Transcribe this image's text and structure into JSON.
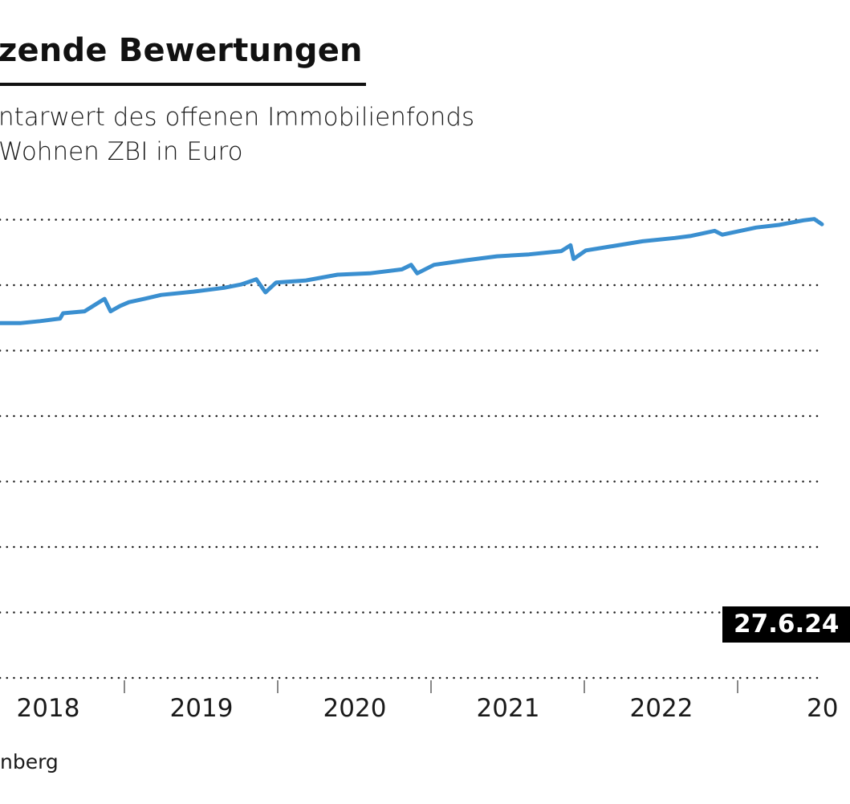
{
  "header": {
    "title": "zende Bewertungen",
    "subtitle_line1": "ntarwert des offenen Immobilienfonds",
    "subtitle_line2": "Wohnen ZBI in Euro"
  },
  "source": "nberg",
  "colors": {
    "line": "#3a8fd0",
    "grid": "#222222",
    "label_bg": "#000000"
  },
  "chart_data": {
    "type": "line",
    "title": "zende Bewertungen",
    "xlabel": "",
    "ylabel": "",
    "x_tick_labels": [
      "2018",
      "2019",
      "2020",
      "2021",
      "2022",
      "20"
    ],
    "grid": true,
    "grid_style": "dotted horizontal",
    "annotation": "27.6.24",
    "xlim": [
      2018.19,
      2023.55
    ],
    "ylim": [
      0,
      7
    ],
    "series": [
      {
        "x": [
          2018.19,
          2018.32,
          2018.45,
          2018.58,
          2018.6,
          2018.74,
          2018.87,
          2018.91,
          2018.97,
          2019.03,
          2019.13,
          2019.24,
          2019.45,
          2019.65,
          2019.76,
          2019.86,
          2019.92,
          2019.99,
          2020.18,
          2020.39,
          2020.6,
          2020.81,
          2020.87,
          2020.91,
          2021.02,
          2021.23,
          2021.43,
          2021.64,
          2021.85,
          2021.91,
          2021.93,
          2022.01,
          2022.17,
          2022.38,
          2022.59,
          2022.69,
          2022.85,
          2022.9,
          2023.12,
          2023.27,
          2023.43,
          2023.5,
          2023.55
        ],
        "y": [
          5.42,
          5.42,
          5.45,
          5.49,
          5.57,
          5.6,
          5.79,
          5.6,
          5.68,
          5.74,
          5.79,
          5.85,
          5.9,
          5.96,
          6.01,
          6.09,
          5.89,
          6.04,
          6.07,
          6.16,
          6.18,
          6.24,
          6.31,
          6.18,
          6.31,
          6.38,
          6.44,
          6.47,
          6.52,
          6.61,
          6.4,
          6.53,
          6.59,
          6.67,
          6.72,
          6.75,
          6.83,
          6.77,
          6.88,
          6.92,
          6.99,
          7.01,
          6.93
        ]
      }
    ]
  }
}
